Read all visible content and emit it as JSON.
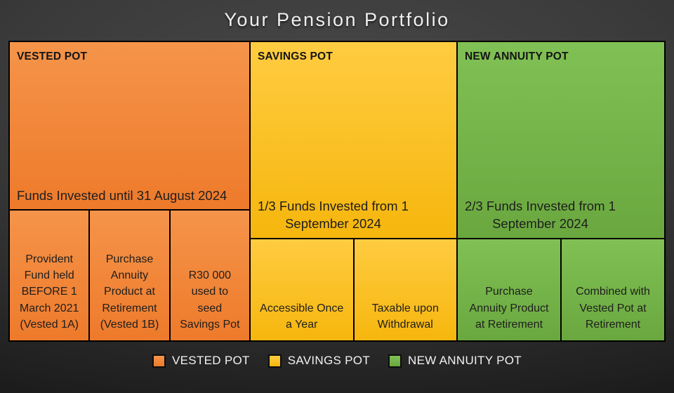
{
  "title": "Your Pension Portfolio",
  "colors": {
    "vested_pot": "#EE7A2B",
    "savings_pot": "#F6B60D",
    "new_annuity_pot": "#6AA83F",
    "background": "#333333",
    "border": "#000000",
    "title_text": "#EFEFEF",
    "box_text": "#1E1E1E"
  },
  "pots": {
    "vested": {
      "label": "VESTED POT",
      "description": "Funds Invested until 31 August 2024",
      "sub_boxes": [
        "Provident\nFund held\nBEFORE 1\nMarch 2021\n(Vested 1A)",
        "Purchase\nAnnuity\nProduct at\nRetirement\n(Vested 1B)",
        "R30 000\nused to\nseed\nSavings Pot"
      ]
    },
    "savings": {
      "label": "SAVINGS POT",
      "description": "1/3 Funds Invested from 1\nSeptember 2024",
      "sub_boxes": [
        "Accessible Once\na Year",
        "Taxable upon\nWithdrawal"
      ]
    },
    "annuity": {
      "label": "NEW ANNUITY POT",
      "description": "2/3 Funds Invested from 1\nSeptember 2024",
      "sub_boxes": [
        "Purchase\nAnnuity Product\nat Retirement",
        "Combined with\nVested Pot at\nRetirement"
      ]
    }
  },
  "legend": [
    {
      "label": "VESTED POT",
      "color": "#EE7A2B"
    },
    {
      "label": "SAVINGS POT",
      "color": "#F6B60D"
    },
    {
      "label": "NEW ANNUITY POT",
      "color": "#6AA83F"
    }
  ]
}
